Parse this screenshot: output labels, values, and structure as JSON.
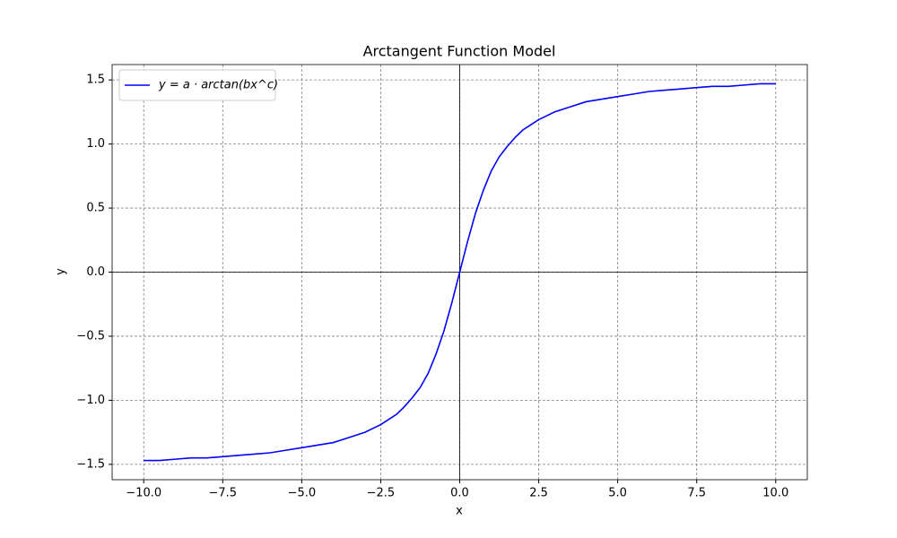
{
  "chart_data": {
    "type": "line",
    "title": "Arctangent Function Model",
    "x_label": "x",
    "y_label": "y",
    "x": [
      -10,
      -9.5,
      -9,
      -8.5,
      -8,
      -7.5,
      -7,
      -6.5,
      -6,
      -5.5,
      -5,
      -4.5,
      -4,
      -3.5,
      -3,
      -2.75,
      -2.5,
      -2.25,
      -2,
      -1.75,
      -1.5,
      -1.25,
      -1,
      -0.75,
      -0.5,
      -0.25,
      0,
      0.25,
      0.5,
      0.75,
      1,
      1.25,
      1.5,
      1.75,
      2,
      2.25,
      2.5,
      2.75,
      3,
      3.5,
      4,
      4.5,
      5,
      5.5,
      6,
      6.5,
      7,
      7.5,
      8,
      8.5,
      9,
      9.5,
      10
    ],
    "series": [
      {
        "name": "y = a · arctan(bx^c)",
        "color": "#0000ff",
        "values": [
          -1.47,
          -1.47,
          -1.46,
          -1.45,
          -1.45,
          -1.44,
          -1.43,
          -1.42,
          -1.41,
          -1.39,
          -1.37,
          -1.35,
          -1.33,
          -1.29,
          -1.25,
          -1.22,
          -1.19,
          -1.15,
          -1.11,
          -1.05,
          -0.98,
          -0.9,
          -0.79,
          -0.64,
          -0.46,
          -0.24,
          0,
          0.24,
          0.46,
          0.64,
          0.79,
          0.9,
          0.98,
          1.05,
          1.11,
          1.15,
          1.19,
          1.22,
          1.25,
          1.29,
          1.33,
          1.35,
          1.37,
          1.39,
          1.41,
          1.42,
          1.43,
          1.44,
          1.45,
          1.45,
          1.46,
          1.47,
          1.47
        ]
      }
    ],
    "xlim": [
      -11,
      11
    ],
    "ylim": [
      -1.62,
      1.62
    ],
    "xticks": [
      {
        "value": -10,
        "label": "−10.0"
      },
      7.5,
      {
        "value": -7.5,
        "label": "−7.5"
      },
      {
        "value": -5,
        "label": "−5.0"
      },
      {
        "value": -2.5,
        "label": "−2.5"
      },
      {
        "value": 0,
        "label": "0.0"
      },
      2.5,
      {
        "value": 5,
        "label": "5.0"
      },
      {
        "value": 10,
        "label": "10.0"
      }
    ],
    "yticks": [
      {
        "value": -1.5,
        "label": "−1.5"
      },
      {
        "value": -1,
        "label": "−1.0"
      },
      {
        "value": -0.5,
        "label": "−0.5"
      },
      {
        "value": 0,
        "label": "0.0"
      },
      0.5,
      {
        "value": 1,
        "label": "1.0"
      },
      1.5
    ],
    "grid": true,
    "legend": "upper left"
  }
}
